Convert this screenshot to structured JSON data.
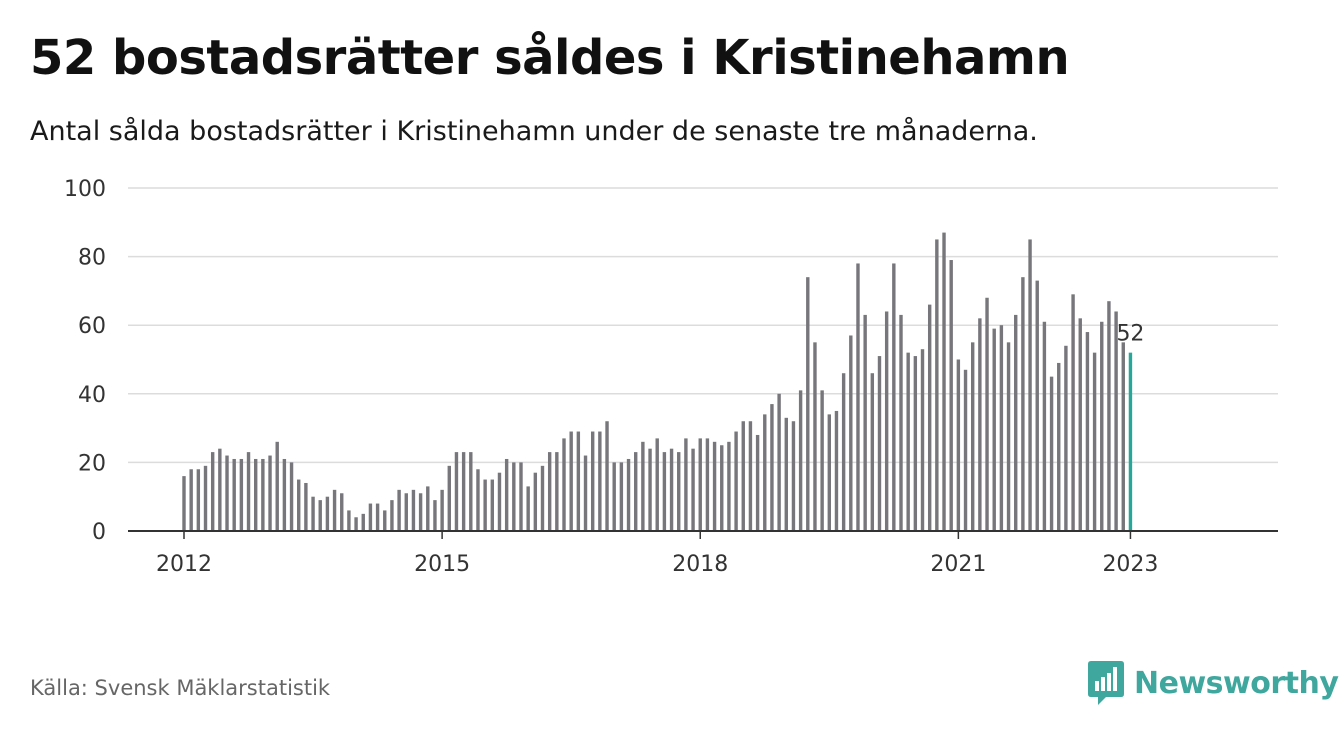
{
  "header": {
    "title": "52 bostadsrätter såldes i Kristinehamn",
    "subtitle": "Antal sålda bostadsrätter i Kristinehamn under de senaste tre månaderna."
  },
  "footer": {
    "source": "Källa: Svensk Mäklarstatistik",
    "brand": "Newsworthy"
  },
  "colors": {
    "bar": "#76767b",
    "highlight": "#27a79a",
    "grid": "#dcdcdc",
    "axis": "#333333",
    "brand": "#3fa79e"
  },
  "icons": [
    "newsworthy-logo-icon"
  ],
  "chart_data": {
    "type": "bar",
    "title": "52 bostadsrätter såldes i Kristinehamn",
    "ylim": [
      0,
      100
    ],
    "yticks": [
      0,
      20,
      40,
      60,
      80,
      100
    ],
    "xticks": [
      "2012",
      "2015",
      "2018",
      "2021",
      "2023"
    ],
    "x_start": "2012-01",
    "x_end": "2023-01",
    "grid": true,
    "legend": "none",
    "highlight_label": "52",
    "values": [
      16,
      18,
      18,
      19,
      23,
      24,
      22,
      21,
      21,
      23,
      21,
      21,
      22,
      26,
      21,
      20,
      15,
      14,
      10,
      9,
      10,
      12,
      11,
      6,
      4,
      5,
      8,
      8,
      6,
      9,
      12,
      11,
      12,
      11,
      13,
      9,
      12,
      19,
      23,
      23,
      23,
      18,
      15,
      15,
      17,
      21,
      20,
      20,
      13,
      17,
      19,
      23,
      23,
      27,
      29,
      29,
      22,
      29,
      29,
      32,
      20,
      20,
      21,
      23,
      26,
      24,
      27,
      23,
      24,
      23,
      27,
      24,
      27,
      27,
      26,
      25,
      26,
      29,
      32,
      32,
      28,
      34,
      37,
      40,
      33,
      32,
      41,
      74,
      55,
      41,
      34,
      35,
      46,
      57,
      78,
      63,
      46,
      51,
      64,
      78,
      63,
      52,
      51,
      53,
      66,
      85,
      87,
      79,
      50,
      47,
      55,
      62,
      68,
      59,
      60,
      55,
      63,
      74,
      85,
      73,
      61,
      45,
      49,
      54,
      69,
      62,
      58,
      52,
      61,
      67,
      64,
      55,
      52
    ]
  }
}
